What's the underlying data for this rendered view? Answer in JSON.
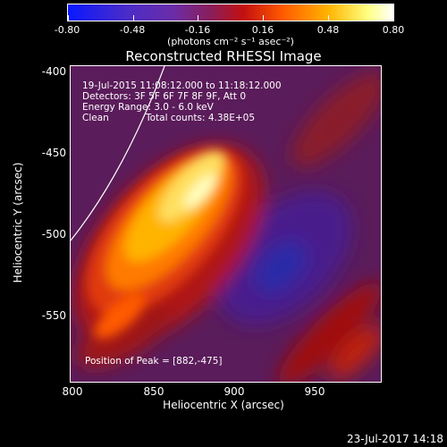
{
  "colorbar": {
    "labels": [
      "-0.80",
      "-0.48",
      "-0.16",
      "0.16",
      "0.48",
      "0.80"
    ],
    "units": "(photons cm⁻² s⁻¹ asec⁻²)"
  },
  "title": "Reconstructed RHESSI Image",
  "annotations": {
    "time_range": "19-Jul-2015 11:08:12.000 to 11:18:12.000",
    "detectors": "Detectors: 3F 5F 6F 7F 8F 9F, Att 0",
    "energy": "Energy Range: 3.0 - 6.0 keV",
    "method": "Clean",
    "counts": "Total counts: 4.38E+05",
    "peak": "Position of Peak = [882,-475]"
  },
  "axes": {
    "xlabel": "Heliocentric X (arcsec)",
    "ylabel": "Heliocentric Y (arcsec)",
    "xticks": [
      "800",
      "850",
      "900",
      "950"
    ],
    "yticks": [
      "-400",
      "-450",
      "-500",
      "-550"
    ]
  },
  "timestamp": "23-Jul-2017 14:18",
  "colors": {
    "foreground": "#ffffff",
    "background": "#000000"
  }
}
